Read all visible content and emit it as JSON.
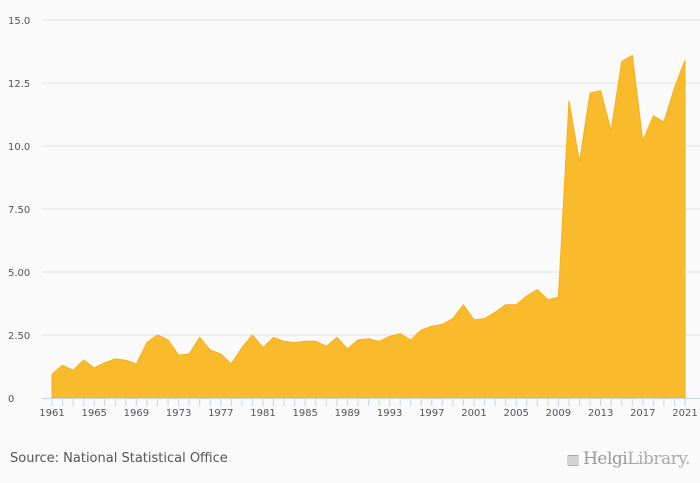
{
  "chart_data": {
    "type": "area",
    "title": "",
    "xlabel": "",
    "ylabel": "",
    "x": [
      1961,
      1962,
      1963,
      1964,
      1965,
      1966,
      1967,
      1968,
      1969,
      1970,
      1971,
      1972,
      1973,
      1974,
      1975,
      1976,
      1977,
      1978,
      1979,
      1980,
      1981,
      1982,
      1983,
      1984,
      1985,
      1986,
      1987,
      1988,
      1989,
      1990,
      1991,
      1992,
      1993,
      1994,
      1995,
      1996,
      1997,
      1998,
      1999,
      2000,
      2001,
      2002,
      2003,
      2004,
      2005,
      2006,
      2007,
      2008,
      2009,
      2010,
      2011,
      2012,
      2013,
      2014,
      2015,
      2016,
      2017,
      2018,
      2019,
      2020,
      2021
    ],
    "values": [
      0.95,
      1.3,
      1.1,
      1.5,
      1.2,
      1.4,
      1.55,
      1.5,
      1.35,
      2.2,
      2.5,
      2.3,
      1.7,
      1.75,
      2.4,
      1.9,
      1.75,
      1.35,
      2.0,
      2.5,
      2.0,
      2.4,
      2.25,
      2.2,
      2.25,
      2.25,
      2.05,
      2.4,
      1.95,
      2.3,
      2.35,
      2.25,
      2.45,
      2.55,
      2.3,
      2.7,
      2.85,
      2.92,
      3.15,
      3.7,
      3.1,
      3.15,
      3.4,
      3.7,
      3.7,
      4.05,
      4.3,
      3.9,
      4.0,
      11.8,
      9.35,
      12.1,
      12.2,
      10.6,
      13.35,
      13.6,
      10.2,
      11.2,
      10.95,
      12.3,
      13.4
    ],
    "ylim": [
      0,
      15
    ],
    "xlim": [
      1961,
      2021
    ],
    "y_ticks": [
      0,
      2.5,
      5,
      7.5,
      10,
      12.5,
      15
    ],
    "y_tick_labels": [
      "0",
      "2.50",
      "5.00",
      "7.50",
      "10.0",
      "12.5",
      "15.0"
    ],
    "x_tick_labels": [
      "1961",
      "1965",
      "1969",
      "1973",
      "1977",
      "1981",
      "1985",
      "1989",
      "1993",
      "1997",
      "2001",
      "2005",
      "2009",
      "2013",
      "2017",
      "2021"
    ],
    "grid": true,
    "color": "#f9bb2c"
  },
  "footer": {
    "source": "Source: National Statistical Office",
    "logo_bold": "Helgi",
    "logo_light": "Library."
  }
}
